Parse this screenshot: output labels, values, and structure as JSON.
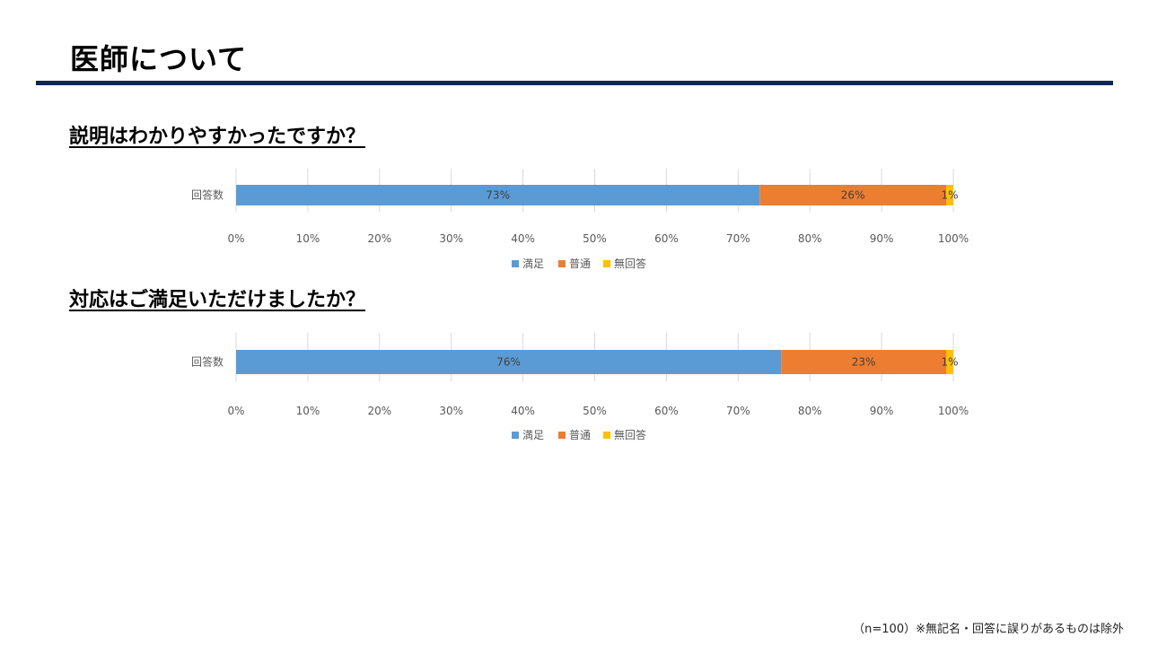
{
  "page": {
    "title": "医師について",
    "footnote": "（n=100）※無記名・回答に誤りがあるものは除外"
  },
  "chart_data": [
    {
      "type": "bar",
      "orientation": "horizontal",
      "stacked": "100%",
      "title": "説明はわかりやすかったですか？",
      "categories": [
        "回答数"
      ],
      "series": [
        {
          "name": "満足",
          "values": [
            73
          ],
          "label": "73%",
          "color": "#5b9bd5"
        },
        {
          "name": "普通",
          "values": [
            26
          ],
          "label": "26%",
          "color": "#ed7d31"
        },
        {
          "name": "無回答",
          "values": [
            1
          ],
          "label": "1%",
          "color": "#ffc000"
        }
      ],
      "xlim": [
        0,
        100
      ],
      "xticks": [
        "0%",
        "10%",
        "20%",
        "30%",
        "40%",
        "50%",
        "60%",
        "70%",
        "80%",
        "90%",
        "100%"
      ],
      "grid": true,
      "legend": "bottom"
    },
    {
      "type": "bar",
      "orientation": "horizontal",
      "stacked": "100%",
      "title": "対応はご満足いただけましたか？",
      "categories": [
        "回答数"
      ],
      "series": [
        {
          "name": "満足",
          "values": [
            76
          ],
          "label": "76%",
          "color": "#5b9bd5"
        },
        {
          "name": "普通",
          "values": [
            23
          ],
          "label": "23%",
          "color": "#ed7d31"
        },
        {
          "name": "無回答",
          "values": [
            1
          ],
          "label": "1%",
          "color": "#ffc000"
        }
      ],
      "xlim": [
        0,
        100
      ],
      "xticks": [
        "0%",
        "10%",
        "20%",
        "30%",
        "40%",
        "50%",
        "60%",
        "70%",
        "80%",
        "90%",
        "100%"
      ],
      "grid": true,
      "legend": "bottom"
    }
  ]
}
